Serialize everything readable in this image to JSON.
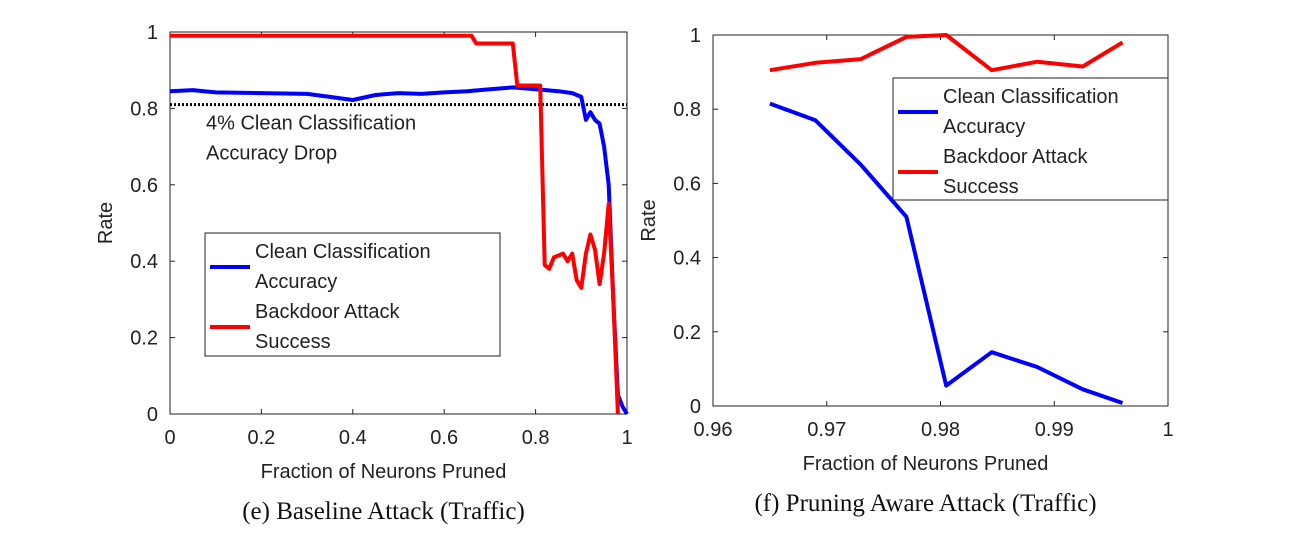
{
  "chart_data": [
    {
      "type": "line",
      "caption": "(e) Baseline Attack (Traffic)",
      "xlabel": "Fraction of Neurons Pruned",
      "ylabel": "Rate",
      "xlim": [
        0,
        1
      ],
      "ylim": [
        0,
        1
      ],
      "xticks": [
        0,
        0.2,
        0.4,
        0.6,
        0.8,
        1
      ],
      "yticks": [
        0,
        0.2,
        0.4,
        0.6,
        0.8,
        1
      ],
      "legend": "center left",
      "threshold": 0.81,
      "annotation": "4% Clean Classification Accuracy Drop",
      "series": [
        {
          "name": "Clean Classification Accuracy",
          "color": "#0000ff",
          "x": [
            0,
            0.05,
            0.1,
            0.2,
            0.3,
            0.35,
            0.4,
            0.45,
            0.5,
            0.55,
            0.6,
            0.65,
            0.7,
            0.75,
            0.8,
            0.85,
            0.88,
            0.9,
            0.91,
            0.92,
            0.93,
            0.94,
            0.95,
            0.96,
            0.97,
            0.98,
            0.99,
            1
          ],
          "values": [
            0.845,
            0.848,
            0.842,
            0.84,
            0.838,
            0.83,
            0.822,
            0.835,
            0.84,
            0.838,
            0.842,
            0.845,
            0.85,
            0.855,
            0.85,
            0.845,
            0.84,
            0.83,
            0.77,
            0.79,
            0.77,
            0.76,
            0.7,
            0.6,
            0.3,
            0.05,
            0.02,
            0
          ]
        },
        {
          "name": "Backdoor Attack Success",
          "color": "#ff0000",
          "x": [
            0,
            0.66,
            0.67,
            0.75,
            0.76,
            0.81,
            0.82,
            0.83,
            0.84,
            0.86,
            0.87,
            0.88,
            0.89,
            0.9,
            0.91,
            0.92,
            0.93,
            0.94,
            0.95,
            0.96,
            0.97,
            0.98
          ],
          "values": [
            0.99,
            0.99,
            0.97,
            0.97,
            0.86,
            0.86,
            0.39,
            0.38,
            0.41,
            0.42,
            0.4,
            0.42,
            0.35,
            0.33,
            0.42,
            0.47,
            0.43,
            0.34,
            0.42,
            0.55,
            0.3,
            0
          ]
        }
      ]
    },
    {
      "type": "line",
      "caption": "(f) Pruning Aware Attack (Traffic)",
      "xlabel": "Fraction of Neurons Pruned",
      "ylabel": "Rate",
      "xlim": [
        0.96,
        1
      ],
      "ylim": [
        0,
        1
      ],
      "xticks": [
        0.96,
        0.97,
        0.98,
        0.99,
        1
      ],
      "yticks": [
        0,
        0.2,
        0.4,
        0.6,
        0.8,
        1
      ],
      "legend": "upper right",
      "series": [
        {
          "name": "Clean Classification Accuracy",
          "color": "#0000ff",
          "x": [
            0.965,
            0.969,
            0.973,
            0.977,
            0.9805,
            0.9845,
            0.9885,
            0.9925,
            0.996
          ],
          "values": [
            0.815,
            0.77,
            0.65,
            0.51,
            0.055,
            0.145,
            0.105,
            0.045,
            0.008
          ]
        },
        {
          "name": "Backdoor Attack Success",
          "color": "#ff0000",
          "x": [
            0.965,
            0.969,
            0.973,
            0.977,
            0.9805,
            0.9845,
            0.9885,
            0.9925,
            0.996
          ],
          "values": [
            0.905,
            0.925,
            0.935,
            0.995,
            1.0,
            0.905,
            0.928,
            0.915,
            0.98
          ]
        }
      ]
    }
  ]
}
